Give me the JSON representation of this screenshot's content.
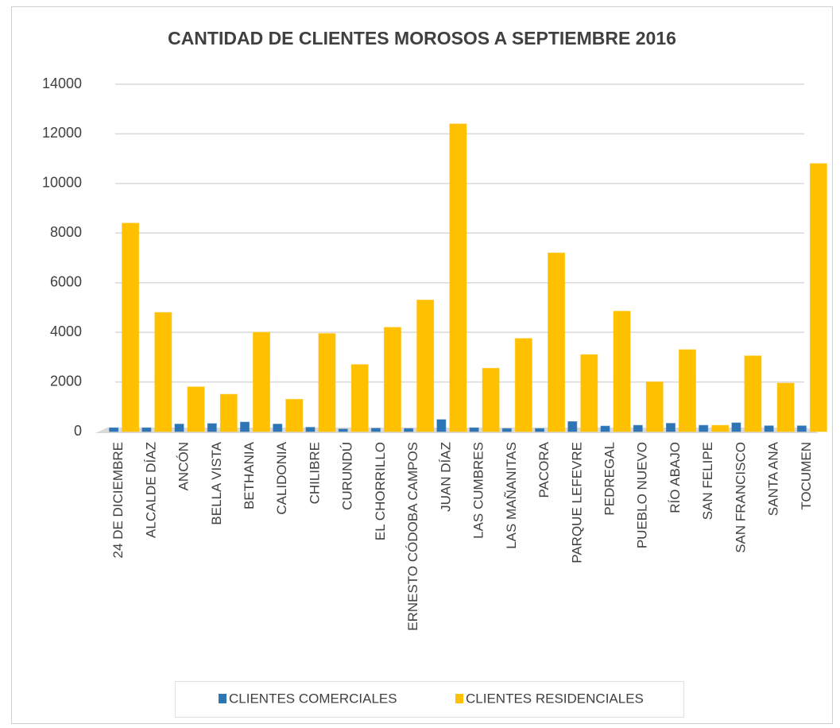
{
  "chart_data": {
    "type": "bar",
    "title": "CANTIDAD DE CLIENTES MOROSOS A SEPTIEMBRE 2016",
    "categories": [
      "24 DE DICIEMBRE",
      "ALCALDE DÍAZ",
      "ANCÓN",
      "BELLA VISTA",
      "BETHANIA",
      "CALIDONIA",
      "CHILIBRE",
      "CURUNDÚ",
      "EL CHORRILLO",
      "ERNESTO CÓDOBA CAMPOS",
      "JUAN DÍAZ",
      "LAS CUMBRES",
      "LAS MAÑANITAS",
      "PACORA",
      "PARQUE LEFEVRE",
      "PEDREGAL",
      "PUEBLO NUEVO",
      "RÍO ABAJO",
      "SAN FELIPE",
      "SAN FRANCISCO",
      "SANTA ANA",
      "TOCUMEN"
    ],
    "series": [
      {
        "name": "CLIENTES COMERCIALES",
        "color": "#2e75b6",
        "values": [
          150,
          150,
          300,
          320,
          380,
          300,
          170,
          100,
          130,
          120,
          480,
          150,
          120,
          120,
          400,
          220,
          250,
          330,
          250,
          350,
          230,
          230
        ]
      },
      {
        "name": "CLIENTES RESIDENCIALES",
        "color": "#ffc000",
        "values": [
          8400,
          4800,
          1800,
          1500,
          4000,
          1300,
          3950,
          2700,
          4200,
          5300,
          12400,
          2550,
          3750,
          7200,
          3100,
          4850,
          2000,
          3300,
          250,
          3050,
          1950,
          10800
        ]
      }
    ],
    "ylim": [
      0,
      14000
    ],
    "yticks": [
      0,
      2000,
      4000,
      6000,
      8000,
      10000,
      12000,
      14000
    ],
    "grid": true,
    "legend": "bottom"
  }
}
